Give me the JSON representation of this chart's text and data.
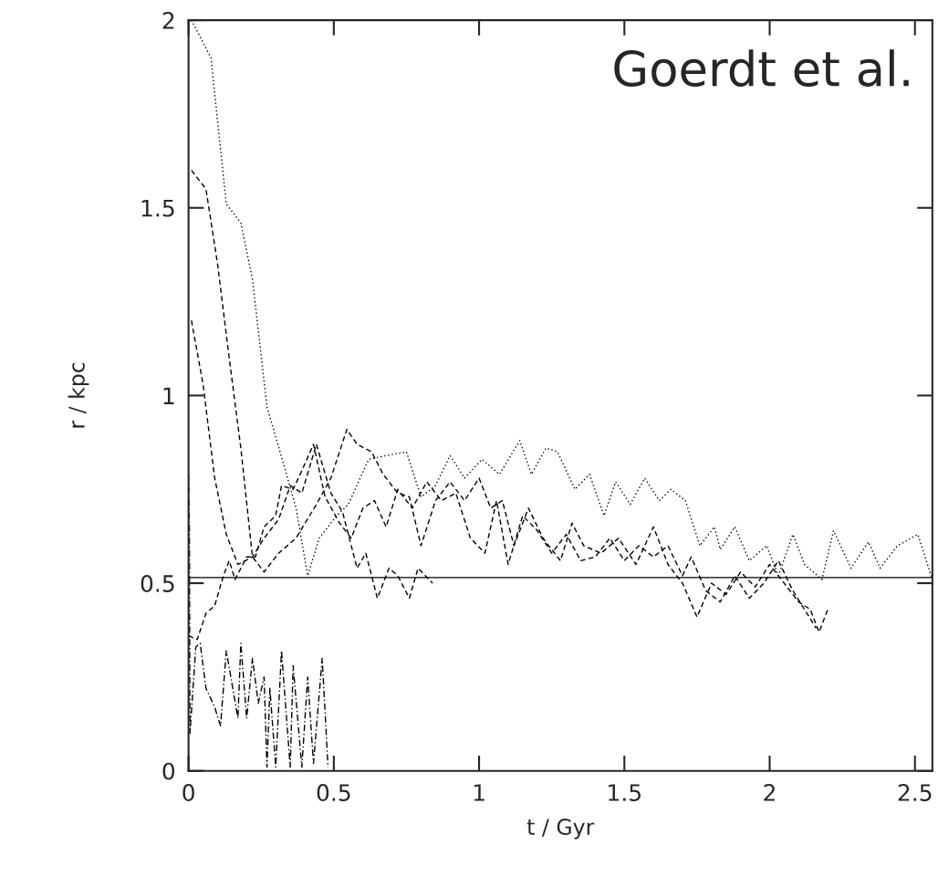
{
  "chart_data": {
    "type": "line",
    "xlabel": "t / Gyr",
    "ylabel": "r / kpc",
    "annotations": [
      "Goerdt et al."
    ],
    "xlim": [
      0,
      2.56
    ],
    "ylim": [
      0,
      2
    ],
    "xticks": [
      0,
      0.5,
      1,
      1.5,
      2,
      2.5
    ],
    "yticks": [
      0,
      0.5,
      1,
      1.5,
      2
    ],
    "grid": false,
    "legend": false,
    "marker": "none",
    "ref_lines": [
      {
        "axis": "y",
        "value": 0.515,
        "color": "#000000",
        "line_style": "solid"
      }
    ],
    "series": [
      {
        "color": "#000000",
        "line_style": "dotted",
        "x": [
          0.01,
          0.077,
          0.13,
          0.18,
          0.22,
          0.27,
          0.33,
          0.37,
          0.41,
          0.45,
          0.51,
          0.55,
          0.62,
          0.68,
          0.75,
          0.8,
          0.85,
          0.9,
          0.95,
          1.01,
          1.07,
          1.14,
          1.18,
          1.23,
          1.27,
          1.33,
          1.38,
          1.43,
          1.47,
          1.52,
          1.57,
          1.62,
          1.66,
          1.71,
          1.76,
          1.81,
          1.83,
          1.88,
          1.93,
          1.99,
          2.03,
          2.08,
          2.12,
          2.18,
          2.22,
          2.28,
          2.34,
          2.38,
          2.44,
          2.51,
          2.56
        ],
        "values": [
          2.0,
          1.9,
          1.51,
          1.46,
          1.31,
          0.97,
          0.81,
          0.7,
          0.52,
          0.62,
          0.68,
          0.71,
          0.83,
          0.84,
          0.85,
          0.73,
          0.76,
          0.84,
          0.78,
          0.83,
          0.79,
          0.88,
          0.79,
          0.86,
          0.85,
          0.75,
          0.79,
          0.68,
          0.77,
          0.71,
          0.78,
          0.72,
          0.75,
          0.72,
          0.6,
          0.65,
          0.59,
          0.65,
          0.56,
          0.6,
          0.52,
          0.63,
          0.55,
          0.51,
          0.64,
          0.54,
          0.61,
          0.54,
          0.6,
          0.63,
          0.51
        ]
      },
      {
        "color": "#000000",
        "line_style": "dashed",
        "x": [
          0.01,
          0.06,
          0.1,
          0.14,
          0.18,
          0.22,
          0.26,
          0.31,
          0.37,
          0.44,
          0.49,
          0.545,
          0.58,
          0.63,
          0.67,
          0.72,
          0.76,
          0.8,
          0.85,
          0.9,
          0.95,
          1.0,
          1.04,
          1.08,
          1.12,
          1.17,
          1.22,
          1.28,
          1.32,
          1.36,
          1.42,
          1.48,
          1.54,
          1.6,
          1.65,
          1.7,
          1.75,
          1.8,
          1.85,
          1.9,
          1.95,
          2.0,
          2.05,
          2.1,
          2.14,
          2.17,
          2.2
        ],
        "values": [
          1.6,
          1.55,
          1.35,
          1.1,
          0.86,
          0.57,
          0.53,
          0.58,
          0.62,
          0.71,
          0.78,
          0.91,
          0.87,
          0.85,
          0.79,
          0.74,
          0.73,
          0.6,
          0.72,
          0.77,
          0.72,
          0.78,
          0.7,
          0.72,
          0.6,
          0.7,
          0.62,
          0.56,
          0.66,
          0.6,
          0.58,
          0.62,
          0.55,
          0.65,
          0.55,
          0.5,
          0.41,
          0.5,
          0.47,
          0.53,
          0.49,
          0.55,
          0.5,
          0.45,
          0.43,
          0.37,
          0.43
        ]
      },
      {
        "color": "#000000",
        "line_style": "dashed",
        "x": [
          0.01,
          0.05,
          0.09,
          0.13,
          0.17,
          0.22,
          0.26,
          0.31,
          0.35,
          0.39,
          0.44,
          0.49,
          0.53,
          0.58,
          0.61,
          0.65,
          0.69,
          0.72,
          0.76,
          0.79,
          0.84
        ],
        "values": [
          1.2,
          1.03,
          0.78,
          0.63,
          0.55,
          0.57,
          0.62,
          0.67,
          0.76,
          0.74,
          0.87,
          0.74,
          0.69,
          0.54,
          0.58,
          0.46,
          0.54,
          0.52,
          0.46,
          0.54,
          0.5
        ]
      },
      {
        "color": "#000000",
        "line_style": "dashdot",
        "x": [
          0.0,
          0.003,
          0.005,
          0.025,
          0.04,
          0.06,
          0.09,
          0.11,
          0.13,
          0.17,
          0.18,
          0.2,
          0.22,
          0.24,
          0.26,
          0.27,
          0.28,
          0.3,
          0.32,
          0.35,
          0.36,
          0.39,
          0.41,
          0.43,
          0.46,
          0.48
        ],
        "values": [
          0.79,
          0.64,
          0.1,
          0.33,
          0.34,
          0.22,
          0.17,
          0.12,
          0.32,
          0.14,
          0.34,
          0.14,
          0.3,
          0.18,
          0.25,
          0.01,
          0.22,
          0.01,
          0.32,
          0.01,
          0.28,
          0.01,
          0.25,
          0.02,
          0.3,
          0.01
        ]
      },
      {
        "color": "#000000",
        "line_style": "dashed",
        "x": [
          0.0,
          0.03,
          0.06,
          0.09,
          0.12,
          0.14,
          0.16,
          0.2,
          0.23,
          0.26,
          0.3,
          0.32,
          0.36,
          0.39,
          0.43,
          0.47,
          0.52,
          0.56,
          0.6,
          0.64,
          0.68,
          0.72,
          0.77,
          0.82,
          0.87,
          0.92,
          0.97,
          1.02,
          1.06,
          1.1,
          1.15,
          1.2,
          1.25,
          1.3,
          1.35,
          1.4,
          1.45,
          1.5,
          1.55,
          1.6,
          1.65,
          1.7,
          1.73,
          1.78,
          1.83,
          1.88,
          1.93,
          1.98,
          2.03,
          2.08,
          2.12,
          2.16
        ],
        "values": [
          0.36,
          0.35,
          0.42,
          0.44,
          0.52,
          0.56,
          0.51,
          0.57,
          0.57,
          0.65,
          0.68,
          0.76,
          0.75,
          0.8,
          0.87,
          0.73,
          0.66,
          0.62,
          0.7,
          0.72,
          0.65,
          0.75,
          0.7,
          0.77,
          0.72,
          0.74,
          0.62,
          0.58,
          0.72,
          0.55,
          0.68,
          0.64,
          0.58,
          0.63,
          0.56,
          0.57,
          0.62,
          0.56,
          0.6,
          0.57,
          0.6,
          0.52,
          0.57,
          0.48,
          0.45,
          0.52,
          0.46,
          0.5,
          0.56,
          0.48,
          0.43,
          0.38
        ]
      }
    ]
  }
}
